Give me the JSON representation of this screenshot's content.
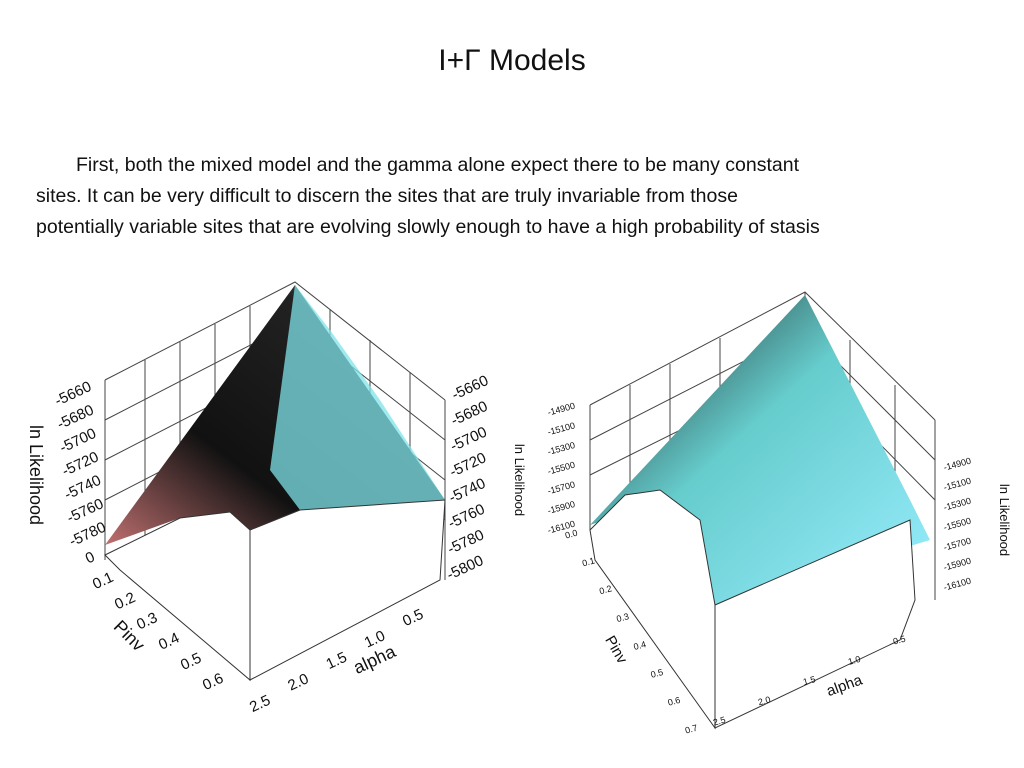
{
  "header": {
    "title": "I+Γ Models"
  },
  "body": {
    "lines": [
      "First, both the mixed model and the gamma alone expect there to be many constant",
      "sites. It can be very difficult to discern the sites that are truly invariable from those",
      "potentially variable sites that are evolving slowly enough to have a high probability of stasis"
    ]
  },
  "figures": [
    {
      "axis_labels": {
        "z": "ln Likelihood",
        "pinv": "Pinv",
        "alpha": "alpha"
      },
      "z_left": [
        "-5660",
        "-5680",
        "-5700",
        "-5720",
        "-5740",
        "-5760",
        "-5780",
        "0"
      ],
      "z_right": [
        "-5660",
        "-5680",
        "-5700",
        "-5720",
        "-5740",
        "-5760",
        "-5780",
        "-5800"
      ],
      "pinv": [
        "0.1",
        "0.2",
        "0.3",
        "0.4",
        "0.5",
        "0.6"
      ],
      "alpha": [
        "2.5",
        "2.0",
        "1.5",
        "1.0",
        "0.5"
      ]
    },
    {
      "axis_labels": {
        "z_left": "ln Likelihood",
        "z_right": "ln Likelihood",
        "pinv": "Pinv",
        "alpha": "alpha"
      },
      "z_left": [
        "-14900",
        "-15100",
        "-15300",
        "-15500",
        "-15700",
        "-15900",
        "-16100"
      ],
      "z_right": [
        "-14900",
        "-15100",
        "-15300",
        "-15500",
        "-15700",
        "-15900",
        "-16100"
      ],
      "pinv": [
        "0.0",
        "0.1",
        "0.2",
        "0.3",
        "0.4",
        "0.5",
        "0.6",
        "0.7"
      ],
      "alpha": [
        "2.5",
        "2.0",
        "1.5",
        "1.0",
        "0.5"
      ]
    }
  ]
}
